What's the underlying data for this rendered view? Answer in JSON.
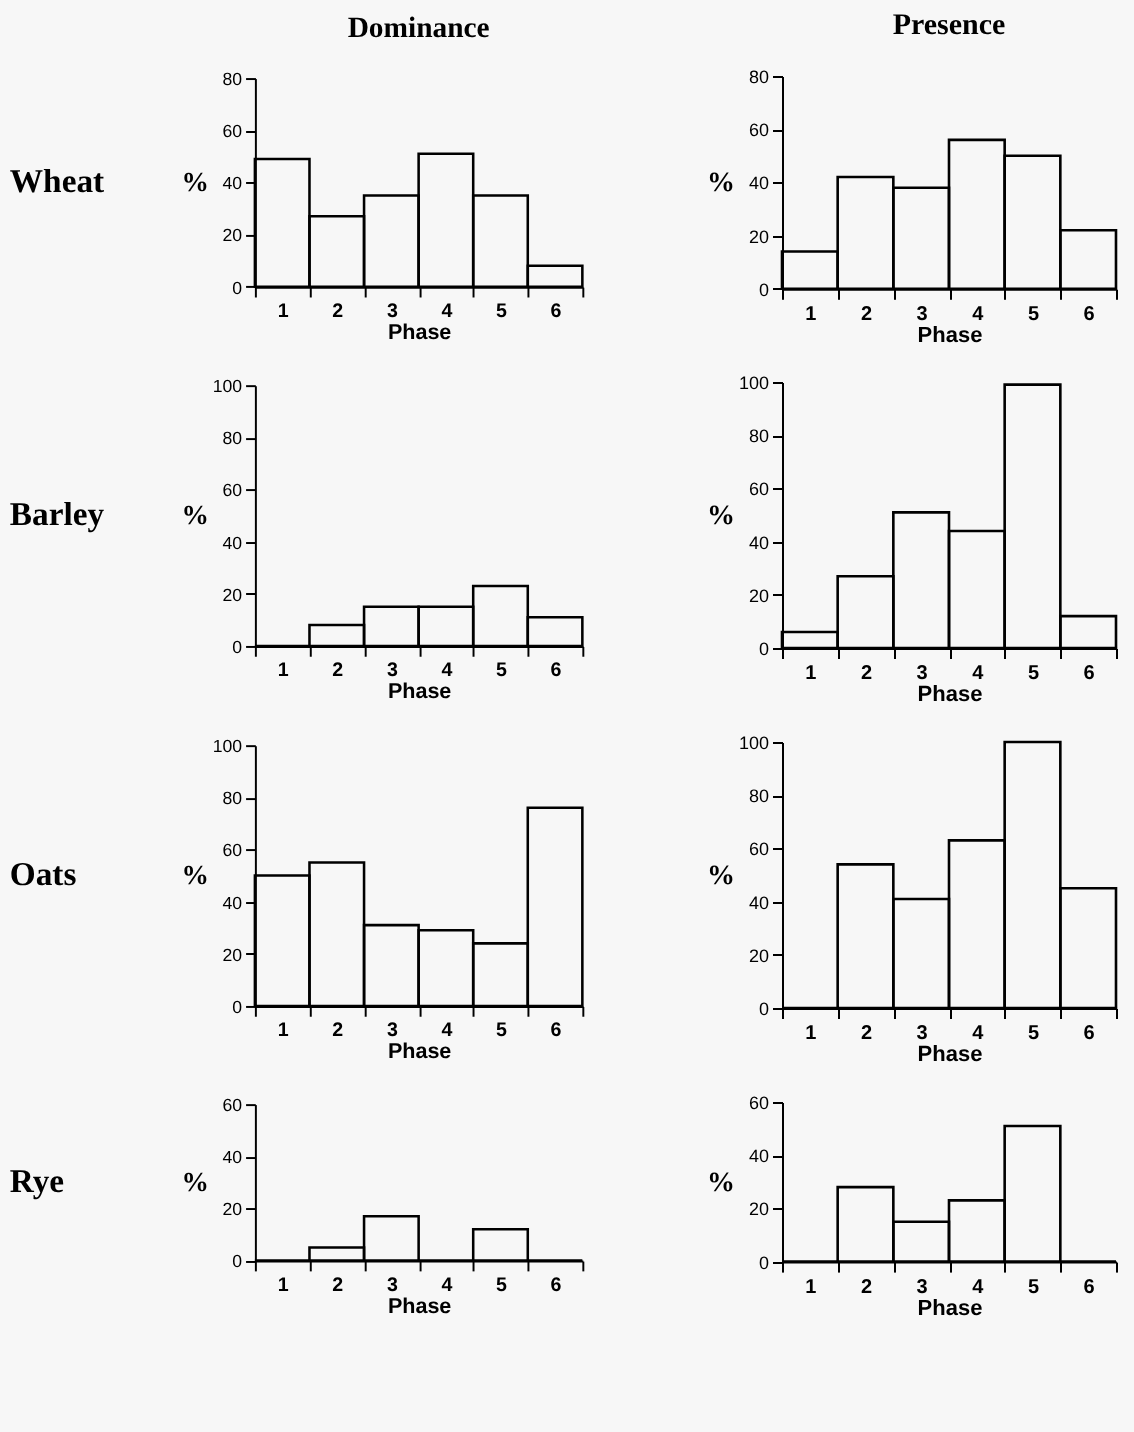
{
  "chart_data": [
    {
      "type": "bar",
      "title": "Dominance",
      "annotations": [
        "Wheat"
      ],
      "categories": [
        "1",
        "2",
        "3",
        "4",
        "5",
        "6"
      ],
      "xlabel": "Phase",
      "ylabel": "%",
      "ylim": [
        0,
        80
      ],
      "yticks": [
        0,
        20,
        40,
        60,
        80
      ],
      "series": [
        {
          "color": "#000000",
          "values": [
            49,
            27,
            35,
            51,
            35,
            8
          ]
        }
      ]
    },
    {
      "type": "bar",
      "title": "Presence",
      "categories": [
        "1",
        "2",
        "3",
        "4",
        "5",
        "6"
      ],
      "xlabel": "Phase",
      "ylabel": "%",
      "ylim": [
        0,
        80
      ],
      "yticks": [
        0,
        20,
        40,
        60,
        80
      ],
      "series": [
        {
          "color": "#000000",
          "values": [
            14,
            42,
            38,
            56,
            50,
            22
          ]
        }
      ]
    },
    {
      "type": "bar",
      "annotations": [
        "Barley"
      ],
      "categories": [
        "1",
        "2",
        "3",
        "4",
        "5",
        "6"
      ],
      "xlabel": "Phase",
      "ylabel": "%",
      "ylim": [
        0,
        100
      ],
      "yticks": [
        0,
        20,
        40,
        60,
        80,
        100
      ],
      "series": [
        {
          "color": "#000000",
          "values": [
            0,
            8,
            15,
            15,
            23,
            11
          ]
        }
      ]
    },
    {
      "type": "bar",
      "categories": [
        "1",
        "2",
        "3",
        "4",
        "5",
        "6"
      ],
      "xlabel": "Phase",
      "ylabel": "%",
      "ylim": [
        0,
        100
      ],
      "yticks": [
        0,
        20,
        40,
        60,
        80,
        100
      ],
      "series": [
        {
          "color": "#000000",
          "values": [
            6,
            27,
            51,
            44,
            99,
            12
          ]
        }
      ]
    },
    {
      "type": "bar",
      "annotations": [
        "Oats"
      ],
      "categories": [
        "1",
        "2",
        "3",
        "4",
        "5",
        "6"
      ],
      "xlabel": "Phase",
      "ylabel": "%",
      "ylim": [
        0,
        100
      ],
      "yticks": [
        0,
        20,
        40,
        60,
        80,
        100
      ],
      "series": [
        {
          "color": "#000000",
          "values": [
            50,
            55,
            31,
            29,
            24,
            76
          ]
        }
      ]
    },
    {
      "type": "bar",
      "categories": [
        "1",
        "2",
        "3",
        "4",
        "5",
        "6"
      ],
      "xlabel": "Phase",
      "ylabel": "%",
      "ylim": [
        0,
        100
      ],
      "yticks": [
        0,
        20,
        40,
        60,
        80,
        100
      ],
      "series": [
        {
          "color": "#000000",
          "values": [
            0,
            54,
            41,
            63,
            100,
            45
          ]
        }
      ]
    },
    {
      "type": "bar",
      "annotations": [
        "Rye"
      ],
      "categories": [
        "1",
        "2",
        "3",
        "4",
        "5",
        "6"
      ],
      "xlabel": "Phase",
      "ylabel": "%",
      "ylim": [
        0,
        60
      ],
      "yticks": [
        0,
        20,
        40,
        60
      ],
      "series": [
        {
          "color": "#000000",
          "values": [
            0,
            5,
            17,
            0,
            12,
            0
          ]
        }
      ]
    },
    {
      "type": "bar",
      "categories": [
        "1",
        "2",
        "3",
        "4",
        "5",
        "6"
      ],
      "xlabel": "Phase",
      "ylabel": "%",
      "ylim": [
        0,
        60
      ],
      "yticks": [
        0,
        20,
        40,
        60
      ],
      "series": [
        {
          "color": "#000000",
          "values": [
            0,
            28,
            15,
            23,
            51,
            0
          ]
        }
      ]
    }
  ]
}
